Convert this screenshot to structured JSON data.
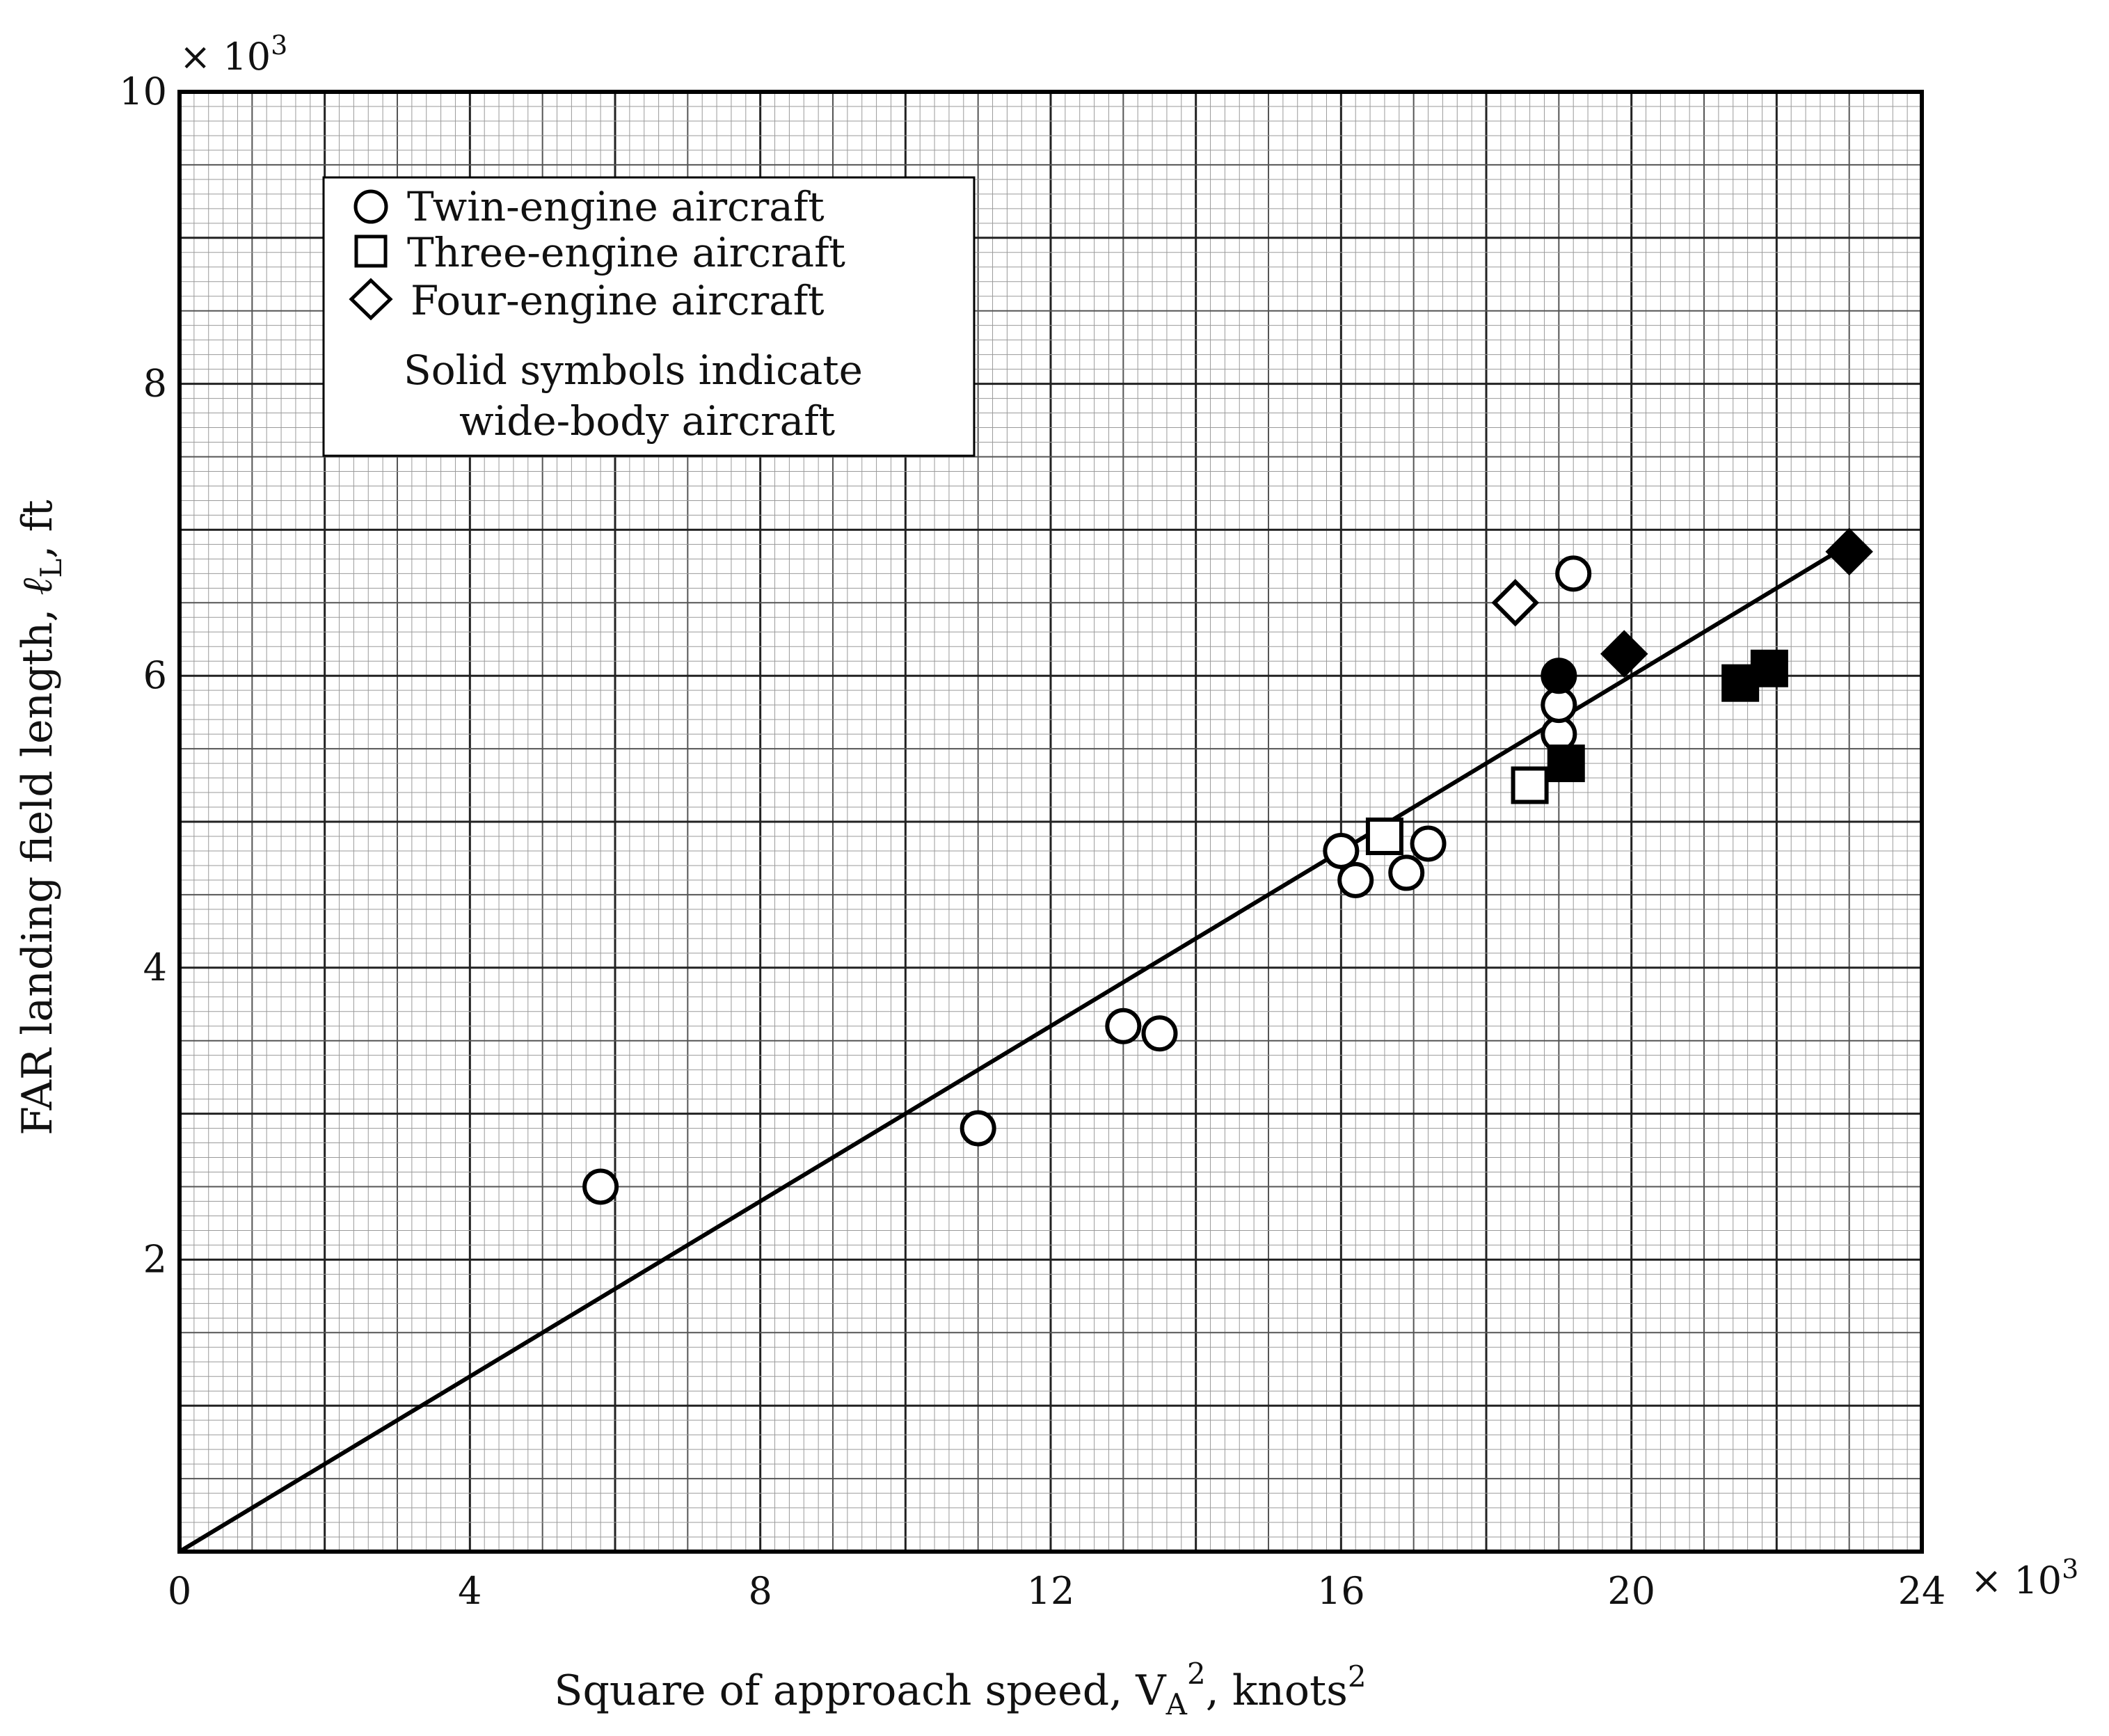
{
  "chart_data": {
    "type": "scatter",
    "xlabel": "Square of approach speed,",
    "xlabel_var": "V",
    "xlabel_sub": "A",
    "xlabel_sup": "2",
    "xlabel_unit": ", knots",
    "xlabel_unit_sup": "2",
    "ylabel": "FAR landing field length,",
    "ylabel_var": "ℓ",
    "ylabel_sub": "L",
    "ylabel_unit": ", ft",
    "x_multiplier": "× 10",
    "x_multiplier_exp": "3",
    "y_multiplier": "× 10",
    "y_multiplier_exp": "3",
    "xlim": [
      0,
      24
    ],
    "ylim": [
      0,
      10
    ],
    "x_ticks": [
      {
        "value": 0,
        "label": "0"
      },
      {
        "value": 4,
        "label": "4"
      },
      {
        "value": 8,
        "label": "8"
      },
      {
        "value": 12,
        "label": "12"
      },
      {
        "value": 16,
        "label": "16"
      },
      {
        "value": 20,
        "label": "20"
      },
      {
        "value": 24,
        "label": "24"
      }
    ],
    "y_ticks": [
      {
        "value": 2,
        "label": "2"
      },
      {
        "value": 4,
        "label": "4"
      },
      {
        "value": 6,
        "label": "6"
      },
      {
        "value": 8,
        "label": "8"
      },
      {
        "value": 10,
        "label": "10"
      }
    ],
    "grid": true,
    "legend_position": "top-left",
    "legend": [
      {
        "marker": "circle",
        "label": "Twin-engine aircraft"
      },
      {
        "marker": "square",
        "label": "Three-engine aircraft"
      },
      {
        "marker": "diamond",
        "label": "Four-engine aircraft"
      }
    ],
    "note_lines": [
      "Solid symbols indicate",
      "wide-body aircraft"
    ],
    "series": [
      {
        "marker": "circle",
        "filled": false,
        "points": [
          [
            5.8,
            2.5
          ],
          [
            11.0,
            2.9
          ],
          [
            13.0,
            3.6
          ],
          [
            13.5,
            3.55
          ],
          [
            16.0,
            4.8
          ],
          [
            16.2,
            4.6
          ],
          [
            16.9,
            4.65
          ],
          [
            17.2,
            4.85
          ],
          [
            19.0,
            5.6
          ],
          [
            19.0,
            5.8
          ],
          [
            19.2,
            6.7
          ]
        ]
      },
      {
        "marker": "circle",
        "filled": true,
        "points": [
          [
            19.0,
            6.0
          ]
        ]
      },
      {
        "marker": "square",
        "filled": false,
        "points": [
          [
            16.6,
            4.9
          ],
          [
            18.6,
            5.25
          ]
        ]
      },
      {
        "marker": "square",
        "filled": true,
        "points": [
          [
            19.1,
            5.4
          ],
          [
            21.5,
            5.95
          ],
          [
            21.9,
            6.05
          ]
        ]
      },
      {
        "marker": "diamond",
        "filled": false,
        "points": [
          [
            18.4,
            6.5
          ]
        ]
      },
      {
        "marker": "diamond",
        "filled": true,
        "points": [
          [
            19.9,
            6.15
          ],
          [
            23.0,
            6.85
          ]
        ]
      }
    ],
    "fit_line": {
      "points": [
        [
          0,
          0
        ],
        [
          23.0,
          6.9
        ]
      ]
    }
  }
}
